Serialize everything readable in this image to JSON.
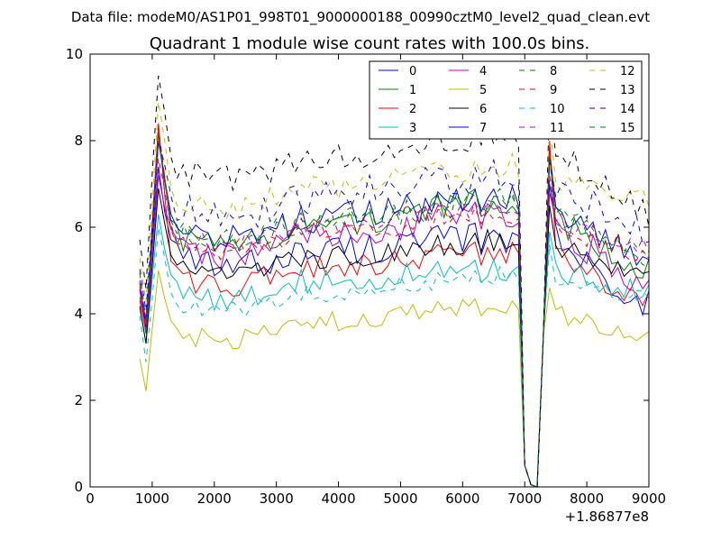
{
  "figure": {
    "suptitle": "Data file: modeM0/AS1P01_998T01_9000000188_00990cztM0_level2_quad_clean.evt",
    "title": "Quadrant 1 module wise count rates with 100.0s bins."
  },
  "chart_data": {
    "type": "line",
    "xlim": [
      0,
      9000
    ],
    "ylim": [
      0,
      10
    ],
    "x_ticks": [
      "0",
      "1000",
      "2000",
      "3000",
      "4000",
      "5000",
      "6000",
      "7000",
      "8000",
      "9000"
    ],
    "y_ticks": [
      "0",
      "2",
      "4",
      "6",
      "8",
      "10"
    ],
    "x_offset_label": "+1.86877e8",
    "xlabel": "",
    "ylabel": "",
    "legend_position": "top-right",
    "series": [
      {
        "name": "0",
        "color": "#0000ff",
        "dash": "solid",
        "level": 5.4,
        "peak": 7.4,
        "low": 3.8,
        "end": 4.2,
        "noise": 0.38,
        "trend": 0.6
      },
      {
        "name": "1",
        "color": "#008000",
        "dash": "solid",
        "level": 5.9,
        "peak": 8.2,
        "low": 3.6,
        "end": 5.0,
        "noise": 0.35,
        "trend": 1.2
      },
      {
        "name": "2",
        "color": "#ff0000",
        "dash": "solid",
        "level": 5.0,
        "peak": 8.4,
        "low": 3.5,
        "end": 4.3,
        "noise": 0.3,
        "trend": 0.7
      },
      {
        "name": "3",
        "color": "#00bfbf",
        "dash": "solid",
        "level": 4.7,
        "peak": 6.3,
        "low": 3.3,
        "end": 4.5,
        "noise": 0.3,
        "trend": 0.5
      },
      {
        "name": "4",
        "color": "#bf00bf",
        "dash": "solid",
        "level": 5.7,
        "peak": 7.2,
        "low": 3.7,
        "end": 4.6,
        "noise": 0.38,
        "trend": 1.0
      },
      {
        "name": "5",
        "color": "#bfbf00",
        "dash": "solid",
        "level": 3.7,
        "peak": 5.0,
        "low": 2.1,
        "end": 3.5,
        "noise": 0.25,
        "trend": 0.8
      },
      {
        "name": "6",
        "color": "#000000",
        "dash": "solid",
        "level": 5.2,
        "peak": 6.9,
        "low": 3.3,
        "end": 4.9,
        "noise": 0.28,
        "trend": 0.8
      },
      {
        "name": "7",
        "color": "#0000ff",
        "dash": "solid",
        "level": 6.1,
        "peak": 8.0,
        "low": 3.8,
        "end": 5.2,
        "noise": 0.35,
        "trend": 0.9
      },
      {
        "name": "8",
        "color": "#008000",
        "dash": "dashed",
        "level": 6.0,
        "peak": 8.1,
        "low": 3.8,
        "end": 5.3,
        "noise": 0.3,
        "trend": 1.1
      },
      {
        "name": "9",
        "color": "#ff0000",
        "dash": "dashed",
        "level": 5.8,
        "peak": 8.3,
        "low": 3.7,
        "end": 5.3,
        "noise": 0.28,
        "trend": 0.8
      },
      {
        "name": "10",
        "color": "#00bfbf",
        "dash": "dashed",
        "level": 4.4,
        "peak": 6.0,
        "low": 3.0,
        "end": 4.4,
        "noise": 0.22,
        "trend": 0.8
      },
      {
        "name": "11",
        "color": "#bf00bf",
        "dash": "dashed",
        "level": 5.9,
        "peak": 7.6,
        "low": 3.8,
        "end": 5.5,
        "noise": 0.28,
        "trend": 0.9
      },
      {
        "name": "12",
        "color": "#bfbf00",
        "dash": "dashed",
        "level": 6.8,
        "peak": 8.9,
        "low": 4.3,
        "end": 6.6,
        "noise": 0.3,
        "trend": 1.0
      },
      {
        "name": "13",
        "color": "#000000",
        "dash": "dashed",
        "level": 7.5,
        "peak": 9.5,
        "low": 4.7,
        "end": 6.2,
        "noise": 0.35,
        "trend": 1.0
      },
      {
        "name": "14",
        "color": "#0000ff",
        "dash": "dashed",
        "level": 6.6,
        "peak": 8.0,
        "low": 4.0,
        "end": 5.9,
        "noise": 0.38,
        "trend": 1.0
      },
      {
        "name": "15",
        "color": "#008000",
        "dash": "dashed",
        "level": 6.0,
        "peak": 8.0,
        "low": 3.9,
        "end": 5.3,
        "noise": 0.3,
        "trend": 1.0
      }
    ]
  }
}
